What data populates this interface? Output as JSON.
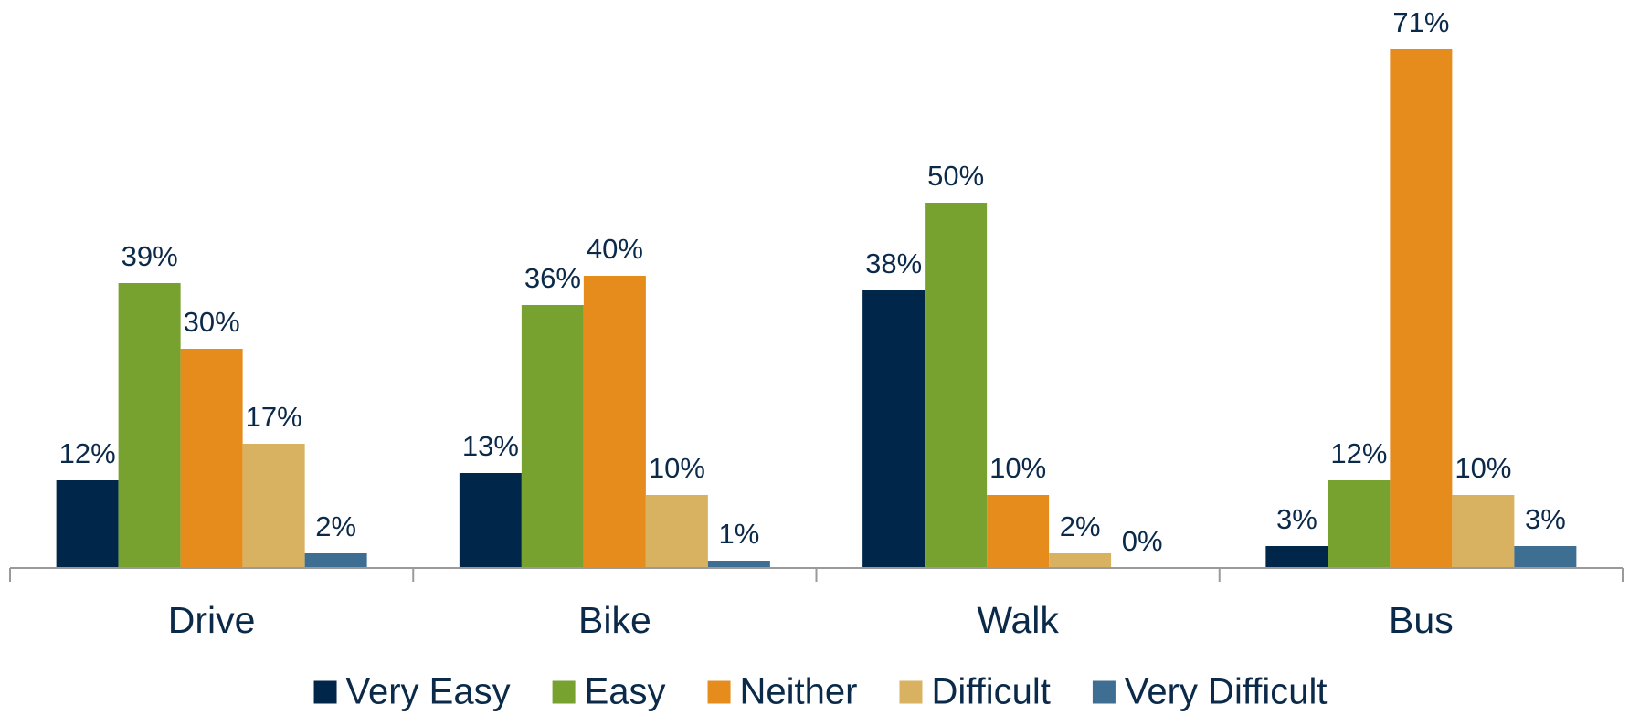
{
  "chart_data": {
    "type": "bar",
    "categories": [
      "Drive",
      "Bike",
      "Walk",
      "Bus"
    ],
    "series": [
      {
        "name": "Very Easy",
        "color": "#00274a",
        "values": [
          12,
          13,
          38,
          3
        ],
        "value_labels": [
          "12%",
          "13%",
          "38%",
          "3%"
        ]
      },
      {
        "name": "Easy",
        "color": "#77a22f",
        "values": [
          39,
          36,
          50,
          12
        ],
        "value_labels": [
          "39%",
          "36%",
          "50%",
          "12%"
        ]
      },
      {
        "name": "Neither",
        "color": "#e58c1c",
        "values": [
          30,
          40,
          10,
          71
        ],
        "value_labels": [
          "30%",
          "40%",
          "10%",
          "71%"
        ]
      },
      {
        "name": "Difficult",
        "color": "#d8b260",
        "values": [
          17,
          10,
          2,
          10
        ],
        "value_labels": [
          "17%",
          "10%",
          "2%",
          "10%"
        ]
      },
      {
        "name": "Very Difficult",
        "color": "#3e6e91",
        "values": [
          2,
          1,
          0,
          3
        ],
        "value_labels": [
          "2%",
          "1%",
          "0%",
          "3%"
        ]
      }
    ],
    "legend": "bottom"
  }
}
